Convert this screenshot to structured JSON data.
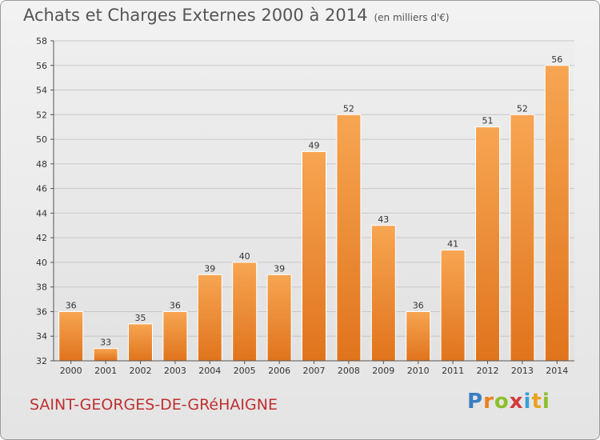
{
  "header": {
    "title": "Achats et Charges Externes 2000 à 2014",
    "subtitle": "(en milliers d'€)"
  },
  "footer": {
    "city": "SAINT-GEORGES-DE-GRéHAIGNE",
    "logo_letters": [
      "P",
      "r",
      "o",
      "x",
      "i",
      "t",
      "i"
    ],
    "logo_colors": [
      "#3a7fc1",
      "#e8811f",
      "#8cbf2a",
      "#d43a3a",
      "#3a9fd6",
      "#e8a21f",
      "#8cbf2a"
    ]
  },
  "chart_data": {
    "type": "bar",
    "title": "Achats et Charges Externes 2000 à 2014",
    "subtitle": "(en milliers d'€)",
    "categories": [
      "2000",
      "2001",
      "2002",
      "2003",
      "2004",
      "2005",
      "2006",
      "2007",
      "2008",
      "2009",
      "2010",
      "2011",
      "2012",
      "2013",
      "2014"
    ],
    "values": [
      36,
      33,
      35,
      36,
      39,
      40,
      39,
      49,
      52,
      43,
      36,
      41,
      51,
      52,
      56
    ],
    "ylim": [
      32,
      58
    ],
    "yticks": [
      32,
      34,
      36,
      38,
      40,
      42,
      44,
      46,
      48,
      50,
      52,
      54,
      56,
      58
    ],
    "grid": true,
    "bar_color_top": "#f7a552",
    "bar_color_bottom": "#e0741c"
  }
}
